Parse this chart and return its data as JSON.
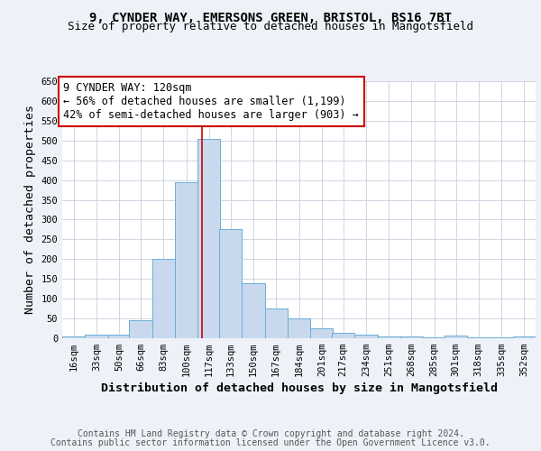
{
  "title_line1": "9, CYNDER WAY, EMERSONS GREEN, BRISTOL, BS16 7BT",
  "title_line2": "Size of property relative to detached houses in Mangotsfield",
  "xlabel": "Distribution of detached houses by size in Mangotsfield",
  "ylabel": "Number of detached properties",
  "footnote1": "Contains HM Land Registry data © Crown copyright and database right 2024.",
  "footnote2": "Contains public sector information licensed under the Open Government Licence v3.0.",
  "annotation_title": "9 CYNDER WAY: 120sqm",
  "annotation_line1": "← 56% of detached houses are smaller (1,199)",
  "annotation_line2": "42% of semi-detached houses are larger (903) →",
  "property_size": 120,
  "bin_edges": [
    16,
    33,
    50,
    66,
    83,
    100,
    117,
    133,
    150,
    167,
    184,
    201,
    217,
    234,
    251,
    268,
    285,
    301,
    318,
    335,
    352
  ],
  "bar_heights": [
    5,
    10,
    10,
    45,
    200,
    395,
    505,
    275,
    140,
    75,
    50,
    25,
    13,
    8,
    5,
    5,
    2,
    7,
    2,
    2,
    5
  ],
  "bar_color": "#c8d9ee",
  "bar_edge_color": "#6aaed6",
  "vline_x": 120,
  "vline_color": "#cc0000",
  "ylim": [
    0,
    650
  ],
  "background_color": "#eef2f8",
  "plot_bg_color": "#ffffff",
  "grid_color": "#c8d0dc",
  "title_fontsize": 10,
  "subtitle_fontsize": 9,
  "tick_label_fontsize": 7.5,
  "axis_label_fontsize": 9.5,
  "annotation_fontsize": 8.5,
  "footnote_fontsize": 7
}
